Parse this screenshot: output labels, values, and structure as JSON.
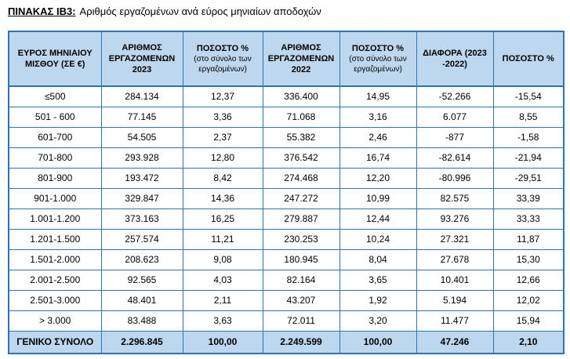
{
  "title": {
    "label": "ΠΙΝΑΚΑΣ ΙΒ3:",
    "text": "Αριθμός εργαζομένων ανά εύρος μηνιαίων αποδοχών"
  },
  "colors": {
    "border_blue": "#2E74B5",
    "header_bg": "#BDD7EE"
  },
  "table": {
    "headers": [
      {
        "title": "ΕΥΡΟΣ ΜΗΝΙΑΙΟΥ ΜΙΣΘΟΥ (ΣΕ €)",
        "subtitle": ""
      },
      {
        "title": "ΑΡΙΘΜΟΣ ΕΡΓΑΖΟΜΕΝΩΝ 2023",
        "subtitle": ""
      },
      {
        "title": "ΠΟΣΟΣΤΟ %",
        "subtitle": "(στο σύνολο των εργαζομένων)"
      },
      {
        "title": "ΑΡΙΘΜΟΣ ΕΡΓΑΖΟΜΕΝΩΝ 2022",
        "subtitle": ""
      },
      {
        "title": "ΠΟΣΟΣΤΟ %",
        "subtitle": "(στο σύνολο των εργαζομένων)"
      },
      {
        "title": "ΔΙΑΦΟΡΑ (2023 -2022)",
        "subtitle": ""
      },
      {
        "title": "ΠΟΣΟΣΤΟ %",
        "subtitle": ""
      }
    ],
    "rows": [
      [
        "≤500",
        "284.134",
        "12,37",
        "336.400",
        "14,95",
        "-52.266",
        "-15,54"
      ],
      [
        "501 - 600",
        "77.145",
        "3,36",
        "71.068",
        "3,16",
        "6.077",
        "8,55"
      ],
      [
        "601-700",
        "54.505",
        "2,37",
        "55.382",
        "2,46",
        "-877",
        "-1,58"
      ],
      [
        "701-800",
        "293.928",
        "12,80",
        "376.542",
        "16,74",
        "-82.614",
        "-21,94"
      ],
      [
        "801-900",
        "193.472",
        "8,42",
        "274.468",
        "12,20",
        "-80.996",
        "-29,51"
      ],
      [
        "901-1.000",
        "329.847",
        "14,36",
        "247.272",
        "10,99",
        "82.575",
        "33,39"
      ],
      [
        "1.001-1.200",
        "373.163",
        "16,25",
        "279.887",
        "12,44",
        "93.276",
        "33,33"
      ],
      [
        "1.201-1.500",
        "257.574",
        "11,21",
        "230.253",
        "10,24",
        "27.321",
        "11,87"
      ],
      [
        "1.501-2.000",
        "208.623",
        "9,08",
        "180.945",
        "8,04",
        "27.678",
        "15,30"
      ],
      [
        "2.001-2.500",
        "92.565",
        "4,03",
        "82.164",
        "3,65",
        "10.401",
        "12,66"
      ],
      [
        "2.501-3.000",
        "48.401",
        "2,11",
        "43.207",
        "1,92",
        "5.194",
        "12,02"
      ],
      [
        "> 3.000",
        "83.488",
        "3,63",
        "72.011",
        "3,20",
        "11.477",
        "15,94"
      ]
    ],
    "total": [
      "ΓΕΝΙΚΟ ΣΥΝΟΛΟ",
      "2.296.845",
      "100,00",
      "2.249.599",
      "100,00",
      "47.246",
      "2,10"
    ]
  }
}
